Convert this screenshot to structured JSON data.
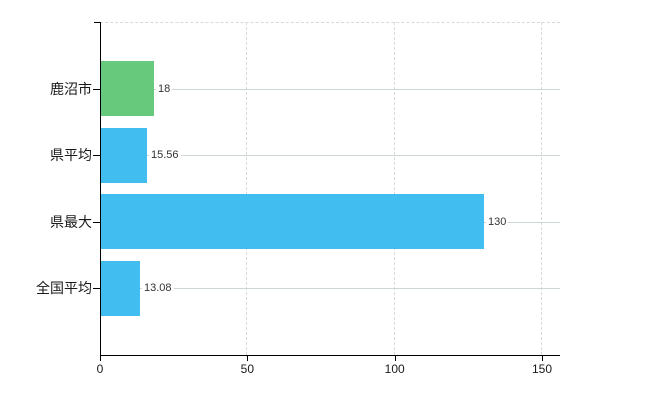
{
  "chart_data": {
    "type": "bar",
    "orientation": "horizontal",
    "title": "",
    "xlabel": "",
    "ylabel": "",
    "categories": [
      "鹿沼市",
      "県平均",
      "県最大",
      "全国平均"
    ],
    "values": [
      18,
      15.56,
      130,
      13.08
    ],
    "value_labels": [
      "18",
      "15.56",
      "130",
      "13.08"
    ],
    "series": [
      {
        "name": "値",
        "values": [
          18,
          15.56,
          130,
          13.08
        ],
        "colors": [
          "#66c97c",
          "#41bdf0",
          "#41bdf0",
          "#41bdf0"
        ]
      }
    ],
    "x_ticks": [
      {
        "value": 0,
        "label": "0"
      },
      {
        "value": 50,
        "label": "50"
      },
      {
        "value": 100,
        "label": "100"
      },
      {
        "value": 150,
        "label": "150"
      }
    ],
    "xlim": [
      0,
      156
    ],
    "grid": true,
    "legend": false
  },
  "colors": {
    "bar_green": "#66c97c",
    "bar_blue": "#41bdf0",
    "axis": "#000000",
    "vertical_gridline": "#d9d9d9",
    "horizontal_gridline": "#cfd8cf",
    "background": "#ffffff",
    "text": "#1a1a1a"
  }
}
